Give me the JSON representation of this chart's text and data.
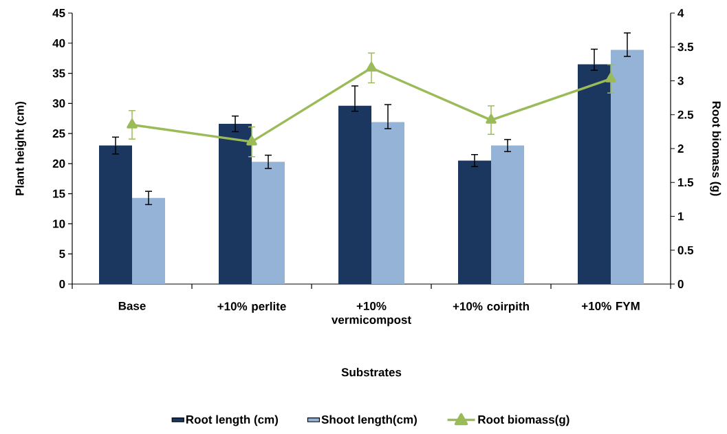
{
  "chart_data": {
    "type": "bar",
    "xlabel": "Substrates",
    "ylabel": "Plant height (cm)",
    "y2label": "Root biomass (g)",
    "categories": [
      "Base",
      "+10% perlite",
      "+10% vermicompost",
      "+10% coirpith",
      "+10% FYM"
    ],
    "series": [
      {
        "name": "Root length (cm)",
        "color": "#1b375f",
        "values": [
          23.0,
          26.6,
          29.6,
          20.5,
          36.5
        ],
        "errors": [
          1.4,
          1.3,
          [
            28.7,
            32.9
          ],
          1.0,
          [
            35.5,
            39.0
          ]
        ]
      },
      {
        "name": "Shoot length(cm)",
        "color": "#95b3d7",
        "values": [
          14.3,
          20.3,
          26.9,
          23.0,
          38.9
        ],
        "errors": [
          1.1,
          1.1,
          [
            25.8,
            29.8
          ],
          1.0,
          [
            37.8,
            41.7
          ]
        ]
      },
      {
        "name": "Root biomass(g)",
        "type": "line",
        "axis": "y2",
        "color": "#9bbb59",
        "values": [
          2.35,
          2.1,
          3.19,
          2.42,
          3.03
        ],
        "errors": [
          0.21,
          0.22,
          0.22,
          0.21,
          0.21
        ]
      }
    ],
    "ylim": [
      0,
      45
    ],
    "yticks": [
      0,
      5,
      10,
      15,
      20,
      25,
      30,
      35,
      40,
      45
    ],
    "y2lim": [
      0,
      4
    ],
    "y2ticks": [
      0,
      0.5,
      1,
      1.5,
      2,
      2.5,
      3,
      3.5,
      4
    ],
    "marker": "triangle",
    "legend": "bottom"
  }
}
